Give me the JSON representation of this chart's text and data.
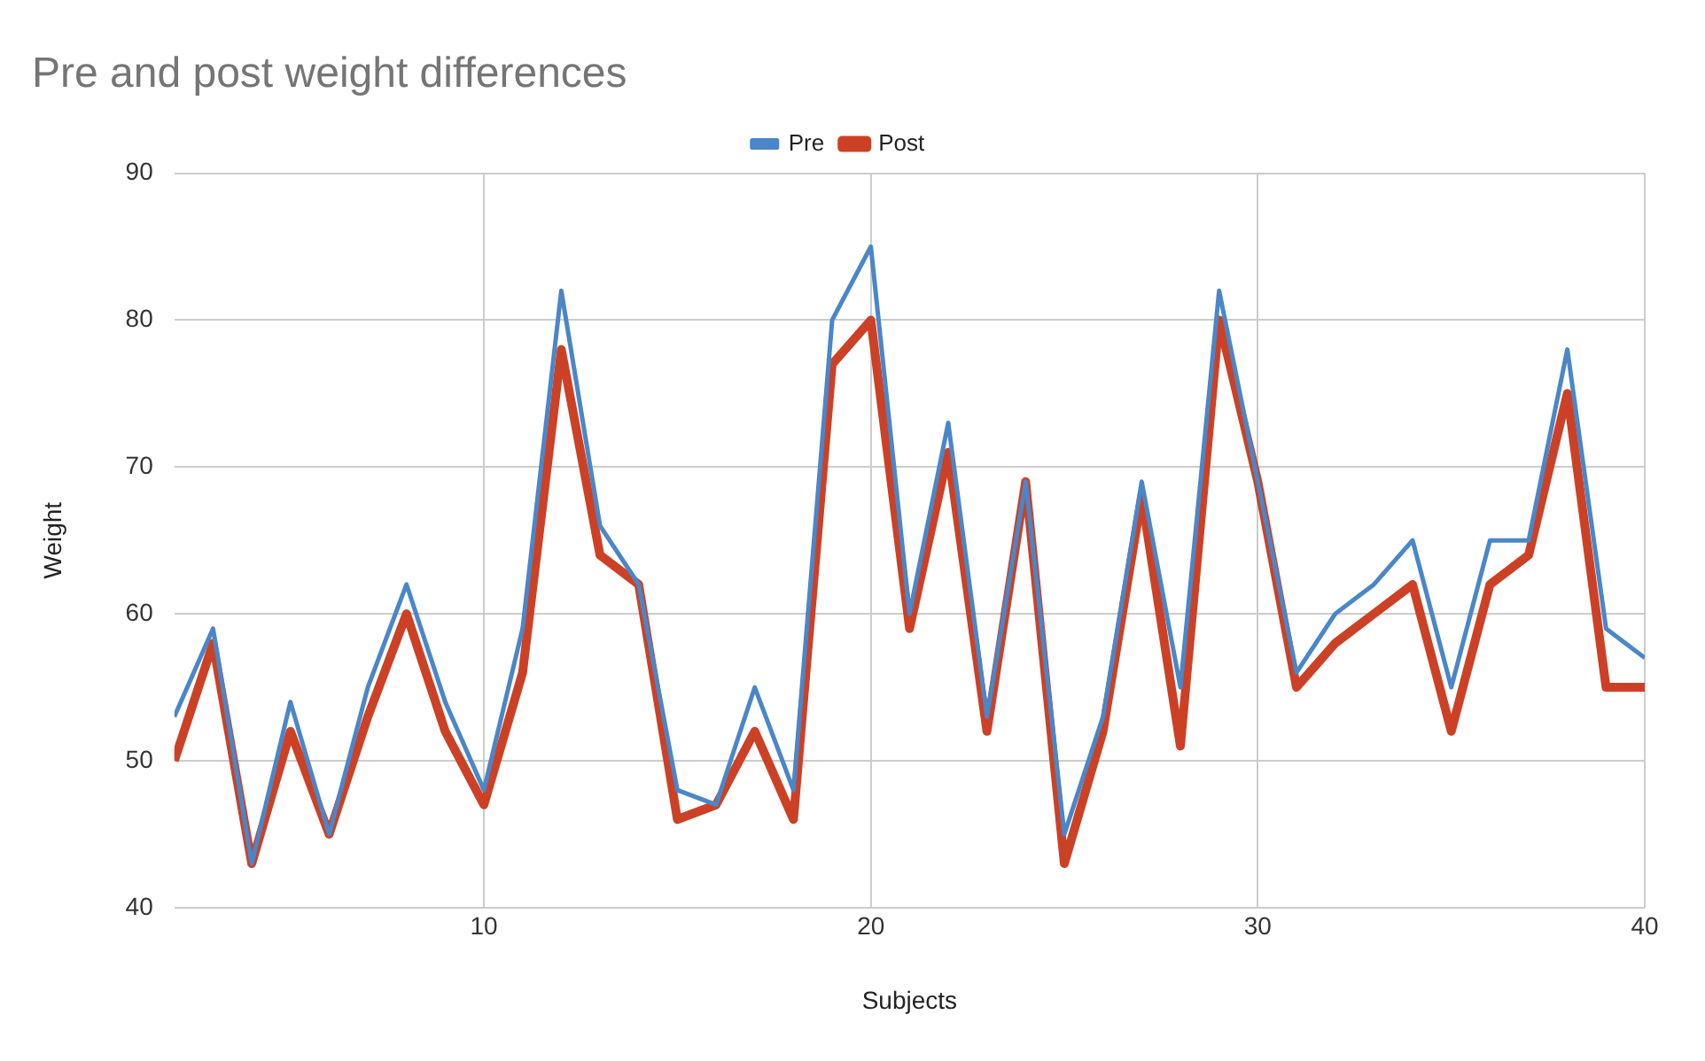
{
  "chart_data": {
    "type": "line",
    "title": "Pre and post weight differences",
    "xlabel": "Subjects",
    "ylabel": "Weight",
    "x": [
      2,
      3,
      4,
      5,
      6,
      7,
      8,
      9,
      10,
      11,
      12,
      13,
      14,
      15,
      16,
      17,
      18,
      19,
      20,
      21,
      22,
      23,
      24,
      25,
      26,
      27,
      28,
      29,
      30,
      31,
      32,
      33,
      34,
      35,
      36,
      37,
      38,
      39,
      40
    ],
    "series": [
      {
        "name": "Pre",
        "color": "#4a86c8",
        "values": [
          53,
          59,
          43,
          54,
          45,
          55,
          62,
          54,
          48,
          59,
          82,
          66,
          62,
          48,
          47,
          55,
          48,
          80,
          85,
          60,
          73,
          53,
          69,
          45,
          53,
          69,
          55,
          82,
          69,
          56,
          60,
          62,
          65,
          55,
          65,
          65,
          78,
          59,
          57
        ]
      },
      {
        "name": "Post",
        "color": "#cc4125",
        "values": [
          50,
          58,
          43,
          52,
          45,
          53,
          60,
          52,
          47,
          56,
          78,
          64,
          62,
          46,
          47,
          52,
          46,
          77,
          80,
          59,
          71,
          52,
          69,
          43,
          52,
          68,
          51,
          80,
          69,
          55,
          58,
          60,
          62,
          52,
          62,
          64,
          75,
          55,
          55
        ]
      }
    ],
    "xlim": [
      2,
      40
    ],
    "xticks": [
      10,
      20,
      30,
      40
    ],
    "ylim": [
      40,
      90
    ],
    "yticks": [
      40,
      50,
      60,
      70,
      80,
      90
    ],
    "grid": true,
    "legend": "top",
    "marker": "none",
    "line_style": "solid"
  }
}
